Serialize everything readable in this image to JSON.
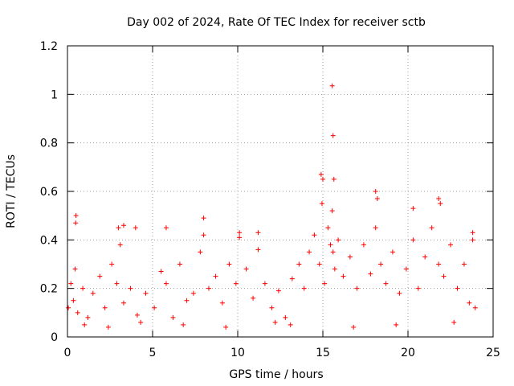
{
  "chart_data": {
    "type": "scatter",
    "title": "Day 002 of 2024, Rate Of TEC Index for receiver sctb",
    "xlabel": "GPS time / hours",
    "ylabel": "ROTI / TECUs",
    "xlim": [
      0,
      25
    ],
    "ylim": [
      0,
      1.2
    ],
    "xticks": [
      0,
      5,
      10,
      15,
      20,
      25
    ],
    "xtick_labels": [
      "0",
      "5",
      "10",
      "15",
      "20",
      "25"
    ],
    "yticks": [
      0,
      0.2,
      0.4,
      0.6,
      0.8,
      1,
      1.2
    ],
    "ytick_labels": [
      "0",
      "0.2",
      "0.4",
      "0.6",
      "0.8",
      "1",
      "1.2"
    ],
    "grid": true,
    "marker": "+",
    "color": "#ff0000",
    "series": [
      {
        "name": "ROTI",
        "x": [
          0.05,
          0.2,
          0.35,
          0.45,
          0.6,
          0.9,
          1.2,
          1.5,
          1.9,
          2.2,
          2.6,
          2.9,
          3.1,
          3.3,
          3.7,
          4.1,
          4.6,
          5.1,
          5.5,
          5.8,
          6.2,
          6.6,
          7.0,
          7.4,
          7.8,
          8.0,
          8.3,
          8.7,
          9.1,
          9.5,
          9.9,
          10.1,
          10.5,
          10.9,
          11.2,
          11.6,
          12.0,
          12.4,
          12.8,
          13.2,
          13.6,
          13.9,
          14.2,
          14.5,
          14.8,
          14.95,
          15.1,
          15.3,
          15.45,
          15.55,
          15.6,
          15.7,
          15.9,
          16.2,
          16.6,
          17.0,
          17.4,
          17.8,
          18.1,
          18.4,
          18.7,
          19.1,
          19.5,
          19.9,
          20.3,
          20.6,
          21.0,
          21.4,
          21.8,
          22.1,
          22.5,
          22.9,
          23.3,
          23.6,
          23.8,
          23.95,
          0.5,
          0.48,
          3.3,
          3.0,
          4.0,
          5.8,
          8.0,
          10.1,
          11.2,
          14.9,
          15.0,
          15.55,
          15.6,
          15.65,
          18.1,
          18.2,
          20.3,
          21.8,
          21.9,
          23.8,
          1.0,
          2.4,
          4.3,
          6.8,
          9.3,
          12.2,
          13.1,
          16.8,
          19.3,
          22.7
        ],
        "y": [
          0.12,
          0.22,
          0.15,
          0.28,
          0.1,
          0.2,
          0.08,
          0.18,
          0.25,
          0.12,
          0.3,
          0.22,
          0.38,
          0.14,
          0.2,
          0.09,
          0.18,
          0.12,
          0.27,
          0.22,
          0.08,
          0.3,
          0.15,
          0.18,
          0.35,
          0.42,
          0.2,
          0.25,
          0.14,
          0.3,
          0.22,
          0.41,
          0.28,
          0.16,
          0.36,
          0.22,
          0.12,
          0.19,
          0.08,
          0.24,
          0.3,
          0.2,
          0.35,
          0.42,
          0.3,
          0.55,
          0.22,
          0.45,
          0.38,
          0.52,
          0.35,
          0.28,
          0.4,
          0.25,
          0.33,
          0.2,
          0.38,
          0.26,
          0.45,
          0.3,
          0.22,
          0.35,
          0.18,
          0.28,
          0.4,
          0.2,
          0.33,
          0.45,
          0.3,
          0.25,
          0.38,
          0.2,
          0.3,
          0.14,
          0.4,
          0.12,
          0.5,
          0.47,
          0.46,
          0.45,
          0.45,
          0.45,
          0.49,
          0.43,
          0.43,
          0.67,
          0.65,
          1.035,
          0.83,
          0.65,
          0.6,
          0.57,
          0.53,
          0.57,
          0.55,
          0.43,
          0.05,
          0.04,
          0.06,
          0.05,
          0.04,
          0.06,
          0.05,
          0.04,
          0.05,
          0.06
        ]
      }
    ]
  }
}
